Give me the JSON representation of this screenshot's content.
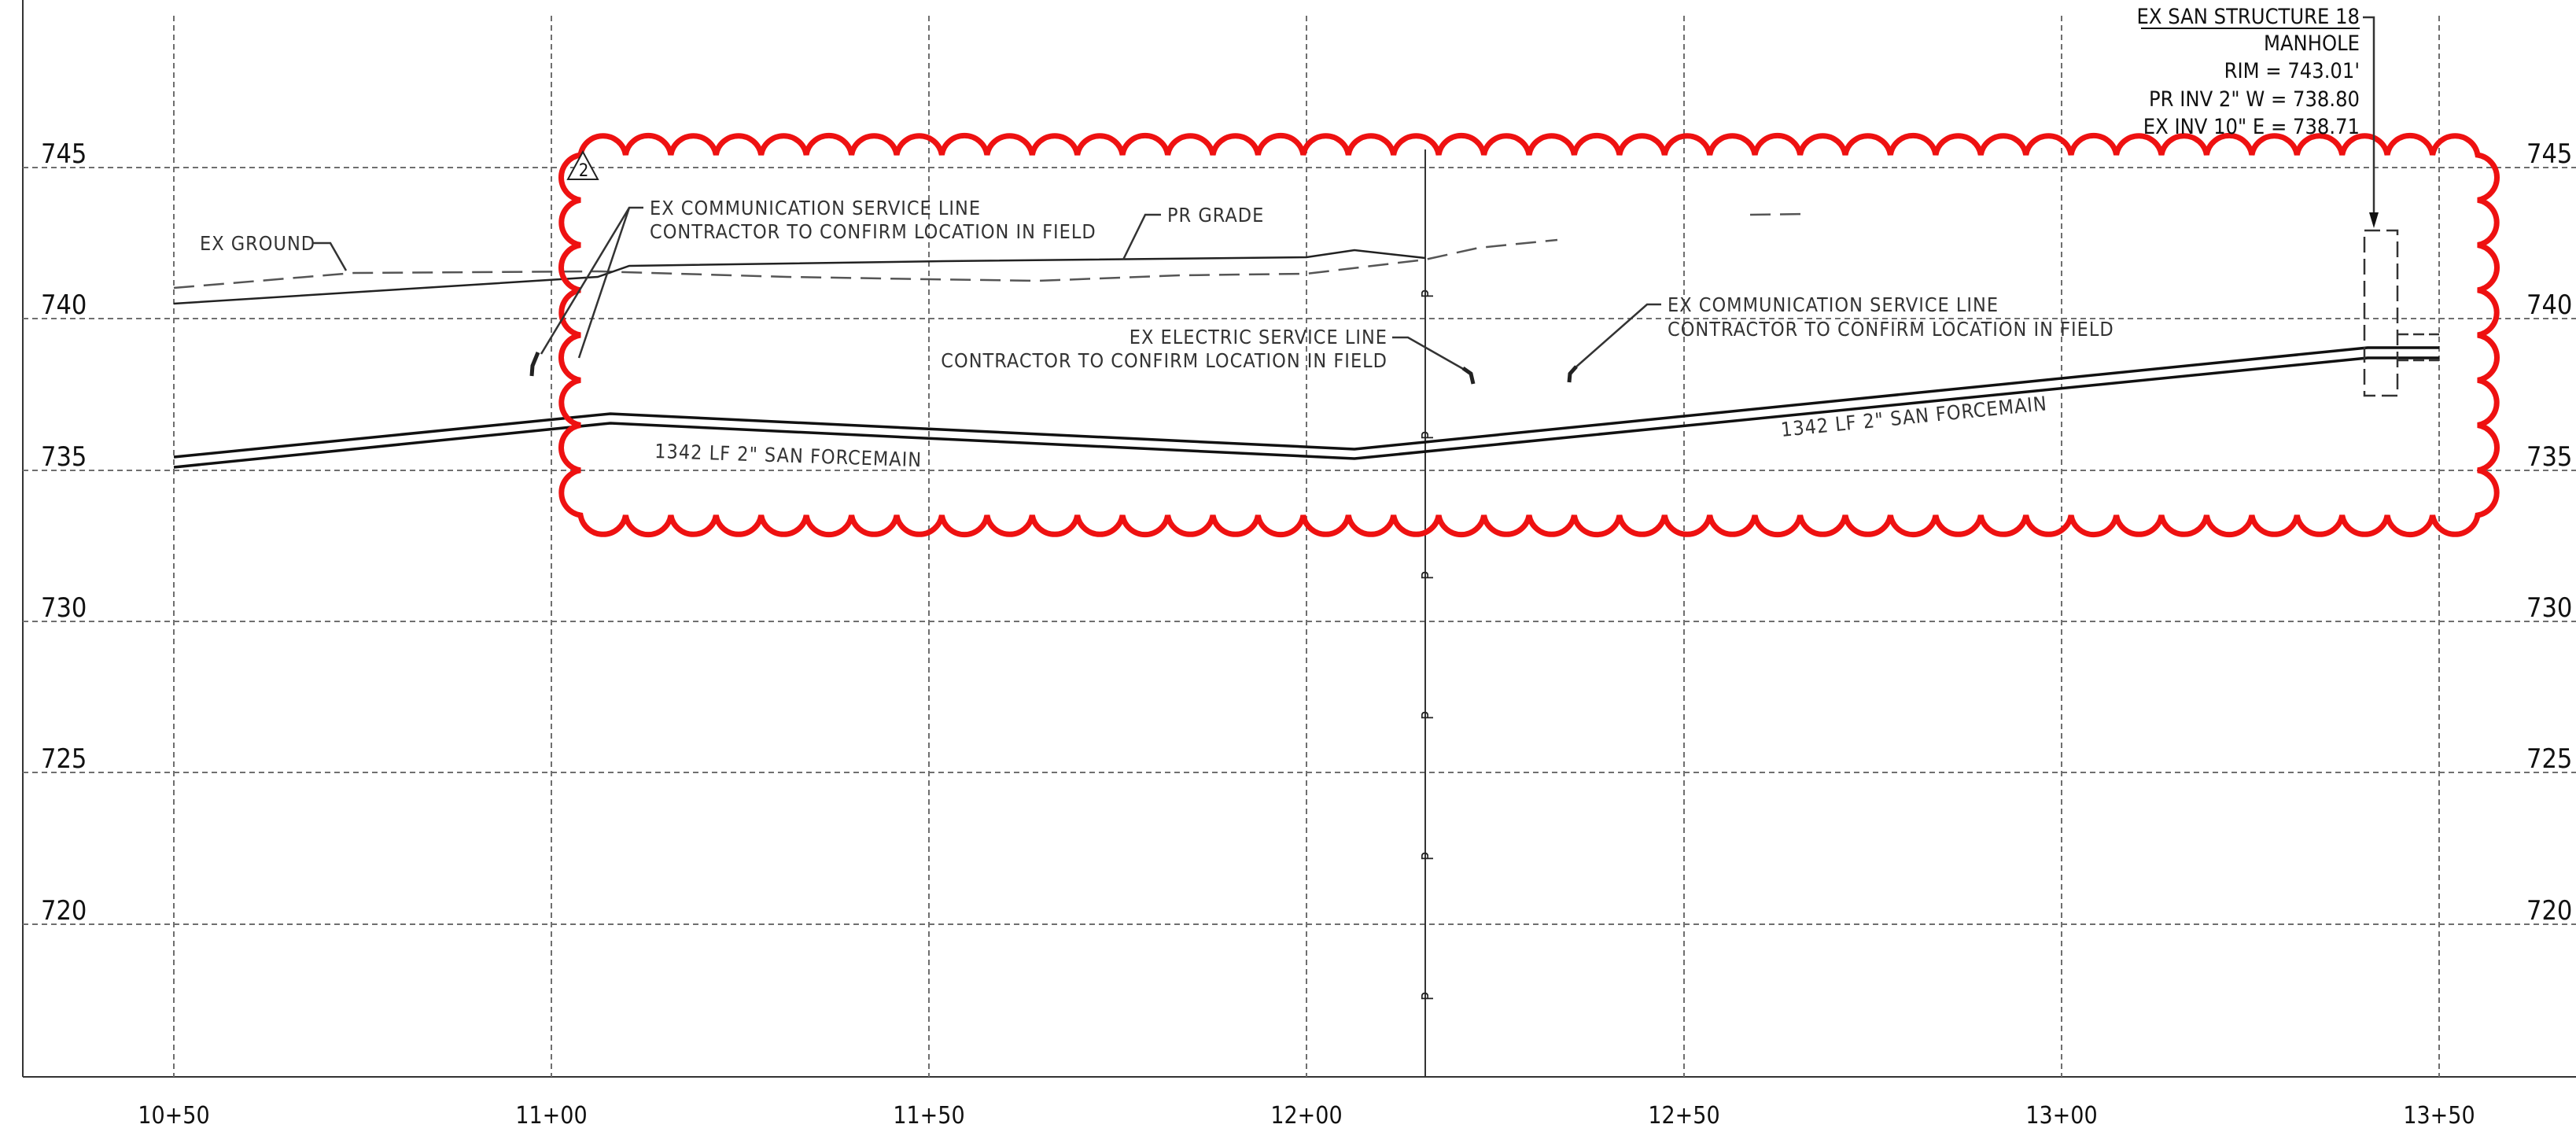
{
  "elevations": [
    "745",
    "740",
    "735",
    "730",
    "725",
    "720"
  ],
  "stations": [
    "10+50",
    "11+00",
    "11+50",
    "12+00",
    "12+50",
    "13+00",
    "13+50"
  ],
  "notes": {
    "ex_ground": "EX GROUND",
    "pr_grade": "PR GRADE",
    "comm_line_1": "EX COMMUNICATION SERVICE LINE",
    "comm_line_1b": "CONTRACTOR TO CONFIRM LOCATION IN FIELD",
    "electric_line": "EX ELECTRIC SERVICE LINE",
    "electric_line_b": "CONTRACTOR TO CONFIRM LOCATION IN FIELD",
    "comm_line_2": "EX COMMUNICATION SERVICE LINE",
    "comm_line_2b": "CONTRACTOR TO CONFIRM LOCATION IN FIELD",
    "forcemain_1": "1342 LF 2\" SAN FORCEMAIN",
    "forcemain_2": "1342 LF 2\" SAN FORCEMAIN",
    "revision": "2"
  },
  "structure": {
    "title": "EX SAN STRUCTURE 18",
    "type": "MANHOLE",
    "rim": "RIM = 743.01'",
    "pr_inv": "PR INV 2\" W = 738.80",
    "ex_inv": "EX INV 10\" E = 738.71"
  },
  "colors": {
    "revision_cloud": "#ee1111",
    "linework": "#111111",
    "grid": "#6f6f6f"
  }
}
